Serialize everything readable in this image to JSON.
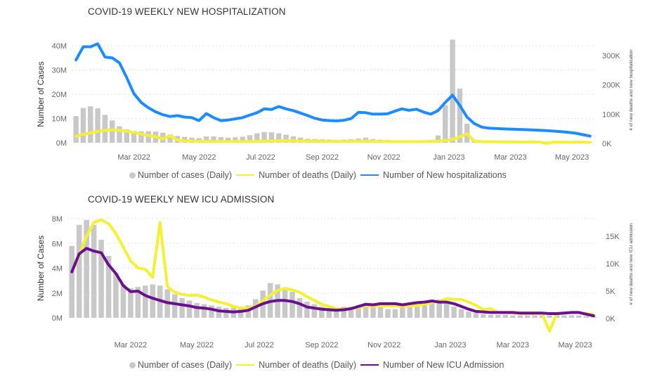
{
  "chart_data": [
    {
      "type": "bar+line",
      "title": "COVID-19 WEEKLY NEW HOSPITALIZATION",
      "ylabel": "Number of Cases",
      "y2label": "# of new deaths and new hospitalization",
      "ylim": [
        0,
        42000000
      ],
      "y2lim": [
        0,
        345000
      ],
      "yticks": [
        "0M",
        "10M",
        "20M",
        "30M",
        "40M"
      ],
      "yticks_values": [
        0,
        10000000,
        20000000,
        30000000,
        40000000
      ],
      "y2ticks": [
        "0K",
        "100K",
        "200K",
        "300K"
      ],
      "y2ticks_values": [
        0,
        100000,
        200000,
        300000
      ],
      "xticks": [
        "Mar 2022",
        "May 2022",
        "Jul 2022",
        "Sep 2022",
        "Nov 2022",
        "Jan 2023",
        "Mar 2023",
        "May 2023"
      ],
      "xticks_week_index": [
        8,
        17,
        25.5,
        34,
        42.5,
        51.5,
        60,
        68.5
      ],
      "grid": true,
      "legend_position": "bottom",
      "series": [
        {
          "name": "Number of cases (Daily)",
          "kind": "bar",
          "axis": "left",
          "color": "#c8c8c8",
          "values": [
            11000000,
            14300000,
            15000000,
            14200000,
            11500000,
            9200000,
            6800000,
            5500000,
            4800000,
            4700000,
            4700000,
            4600000,
            4100000,
            3400000,
            2800000,
            2400000,
            2100000,
            1900000,
            2600000,
            2600000,
            2300000,
            2100000,
            2200000,
            2500000,
            3100000,
            3900000,
            4400000,
            4300000,
            3900000,
            3300000,
            2600000,
            2100000,
            1600000,
            1500000,
            1400000,
            1300000,
            1200000,
            1300000,
            1400000,
            1700000,
            2100000,
            1500000,
            1300000,
            1100000,
            1000000,
            900000,
            800000,
            800000,
            900000,
            1000000,
            3000000,
            15500000,
            42500000,
            22300000,
            7800000,
            1200000,
            900000,
            700000,
            600000,
            600000,
            500000,
            500000,
            500000,
            500000,
            500000,
            500000,
            500000,
            500000,
            400000,
            400000,
            400000,
            300000
          ]
        },
        {
          "name": "Number of deaths (Daily)",
          "kind": "line",
          "axis": "right",
          "color": "#f5f032",
          "values": [
            24000,
            31000,
            36000,
            41000,
            45000,
            46000,
            45000,
            42000,
            37000,
            32000,
            27000,
            23000,
            16000,
            26000,
            12000,
            9000,
            8000,
            7500,
            7000,
            6500,
            6500,
            6500,
            6500,
            6500,
            7000,
            7500,
            8000,
            8500,
            9000,
            9000,
            9000,
            8500,
            8000,
            7500,
            7000,
            7000,
            7000,
            7000,
            7000,
            7000,
            7500,
            7500,
            7000,
            6500,
            6000,
            6000,
            6000,
            6000,
            6500,
            7000,
            8000,
            10000,
            14000,
            22000,
            33000,
            8000,
            6000,
            5500,
            5500,
            5500,
            5500,
            5000,
            5000,
            5000,
            5000,
            0,
            4500,
            4500,
            4500,
            4500,
            4000,
            3500
          ]
        },
        {
          "name": "Number of New hospitalizations",
          "kind": "line",
          "axis": "right",
          "color": "#1a8cff",
          "values": [
            285000,
            330000,
            330000,
            340000,
            295000,
            292000,
            275000,
            225000,
            170000,
            140000,
            122000,
            108000,
            98000,
            92000,
            95000,
            90000,
            88000,
            78000,
            102000,
            88000,
            78000,
            80000,
            84000,
            88000,
            97000,
            105000,
            118000,
            116000,
            126000,
            118000,
            112000,
            104000,
            95000,
            86000,
            80000,
            78000,
            77000,
            79000,
            85000,
            106000,
            105000,
            100000,
            100000,
            101000,
            110000,
            118000,
            113000,
            117000,
            107000,
            100000,
            112000,
            140000,
            165000,
            130000,
            90000,
            68000,
            56000,
            52000,
            51000,
            50000,
            49000,
            48000,
            47000,
            46000,
            45000,
            44000,
            42000,
            40000,
            38000,
            35000,
            30000,
            25000
          ]
        }
      ]
    },
    {
      "type": "bar+line",
      "title": "COVID-19 WEEKLY NEW ICU ADMISSION",
      "ylabel": "Number of Cases",
      "y2label": "# of new deaths and new ICU admission",
      "ylim": [
        0,
        8000000
      ],
      "y2lim": [
        0,
        18000
      ],
      "yticks": [
        "0M",
        "2M",
        "4M",
        "6M",
        "8M"
      ],
      "yticks_values": [
        0,
        2000000,
        4000000,
        6000000,
        8000000
      ],
      "y2ticks": [
        "0K",
        "5K",
        "10K",
        "15K"
      ],
      "y2ticks_values": [
        0,
        5000,
        10000,
        15000
      ],
      "xticks": [
        "Mar 2022",
        "May 2022",
        "Jul 2022",
        "Sep 2022",
        "Nov 2022",
        "Jan 2023",
        "Mar 2023",
        "May 2023"
      ],
      "xticks_week_index": [
        8,
        17,
        25.5,
        34,
        42.5,
        51.5,
        60,
        68.5
      ],
      "grid": true,
      "legend_position": "bottom",
      "series": [
        {
          "name": "Number of cases (Daily)",
          "kind": "bar",
          "axis": "left",
          "color": "#c8c8c8",
          "values": [
            5800000,
            7500000,
            7900000,
            7500000,
            6300000,
            5000000,
            3600000,
            2700000,
            2400000,
            2500000,
            2600000,
            2700000,
            2600000,
            2300000,
            1900000,
            1600000,
            1400000,
            1200000,
            1100000,
            1000000,
            900000,
            800000,
            800000,
            900000,
            1000000,
            1500000,
            2200000,
            2800000,
            2700000,
            2400000,
            2100000,
            1600000,
            1300000,
            1100000,
            900000,
            800000,
            800000,
            900000,
            900000,
            1000000,
            1100000,
            1000000,
            900000,
            700000,
            700000,
            900000,
            1000000,
            1100000,
            1200000,
            1300000,
            1500000,
            1200000,
            900000,
            700000,
            500000,
            400000,
            300000,
            250000,
            250000,
            250000,
            200000,
            200000,
            200000,
            200000,
            200000,
            200000,
            200000,
            200000,
            200000,
            200000,
            150000,
            150000
          ]
        },
        {
          "name": "Number of deaths (Daily)",
          "kind": "line",
          "axis": "right",
          "color": "#f5f032",
          "values": [
            8500,
            11500,
            15000,
            17500,
            18000,
            17300,
            15500,
            13000,
            10500,
            9200,
            9000,
            7500,
            17500,
            5800,
            4800,
            4400,
            4200,
            4300,
            3900,
            3400,
            3000,
            2700,
            2200,
            1900,
            1900,
            2200,
            3200,
            4300,
            5100,
            5500,
            5200,
            4800,
            4000,
            3300,
            2600,
            2200,
            1800,
            1700,
            1800,
            2000,
            2300,
            2200,
            2300,
            2300,
            2300,
            2200,
            2300,
            2400,
            2600,
            2900,
            3200,
            3600,
            3500,
            3500,
            3000,
            2400,
            1600,
            1800,
            1100,
            1100,
            1000,
            900,
            900,
            900,
            900,
            -2300,
            900,
            1000,
            1100,
            1100,
            900,
            700
          ]
        },
        {
          "name": "Number of New ICU Admission",
          "kind": "line",
          "axis": "right",
          "color": "#6a0f8e",
          "values": [
            8500,
            11800,
            12800,
            12300,
            12000,
            9800,
            8200,
            6000,
            4900,
            5000,
            4200,
            3700,
            3300,
            2900,
            2700,
            2500,
            2300,
            2000,
            1900,
            1700,
            1400,
            1300,
            1200,
            1300,
            1500,
            2100,
            2700,
            3100,
            3300,
            3300,
            3100,
            2700,
            2100,
            1900,
            1700,
            1600,
            1500,
            1600,
            1800,
            2200,
            2600,
            2500,
            2700,
            2700,
            2700,
            2500,
            2700,
            2900,
            3000,
            3200,
            3000,
            3000,
            2700,
            2200,
            1700,
            1300,
            1200,
            1100,
            1100,
            1100,
            1100,
            1000,
            1000,
            1000,
            1000,
            900,
            900,
            1000,
            1100,
            1100,
            800,
            500
          ]
        }
      ]
    }
  ]
}
